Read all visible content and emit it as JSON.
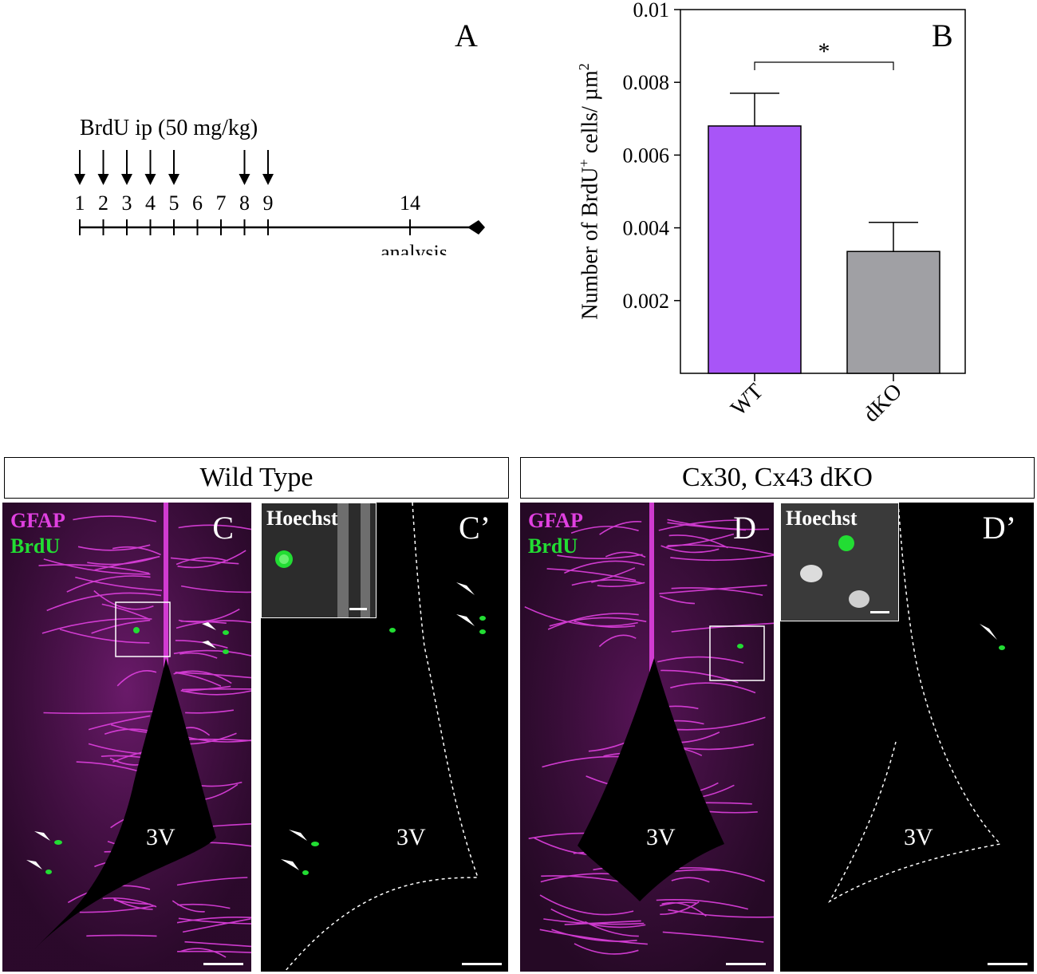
{
  "panel_a": {
    "letter": "A",
    "injection_label": "BrdU ip (50 mg/kg)",
    "days": [
      "1",
      "2",
      "3",
      "4",
      "5",
      "6",
      "7",
      "8",
      "9"
    ],
    "injection_days": [
      "1",
      "2",
      "3",
      "4",
      "5",
      "8",
      "9"
    ],
    "end_day": "14",
    "end_label": "analysis"
  },
  "panel_b": {
    "letter": "B",
    "ylabel_main": "Number of BrdU",
    "ylabel_sup": "+",
    "ylabel_rest": " cells/ µm",
    "ylabel_sup2": "2",
    "significance": "*",
    "colors": {
      "WT": "#a855f7",
      "dKO": "#a0a0a4"
    }
  },
  "chart_data": {
    "type": "bar",
    "categories": [
      "WT",
      "dKO"
    ],
    "values": [
      0.0068,
      0.00335
    ],
    "error": [
      0.0009,
      0.0008
    ],
    "ylabel": "Number of BrdU+ cells/ µm2",
    "ylim": [
      0,
      0.01
    ],
    "yticks": [
      "0.002",
      "0.004",
      "0.006",
      "0.008",
      "0.01"
    ],
    "grid": false,
    "annotations": [
      "*"
    ]
  },
  "headers": {
    "left": "Wild Type",
    "right": "Cx30, Cx43 dKO"
  },
  "panels": {
    "c": {
      "letter": "C",
      "stain1": "GFAP",
      "stain2": "BrdU",
      "ventricle": "3V"
    },
    "c2": {
      "letter": "C’",
      "inset": "Hoechst",
      "ventricle": "3V"
    },
    "d": {
      "letter": "D",
      "stain1": "GFAP",
      "stain2": "BrdU",
      "ventricle": "3V"
    },
    "d2": {
      "letter": "D’",
      "inset": "Hoechst",
      "ventricle": "3V"
    }
  },
  "colors": {
    "gfap": "#e040e0",
    "brdu": "#22dd33",
    "background": "#000000"
  }
}
